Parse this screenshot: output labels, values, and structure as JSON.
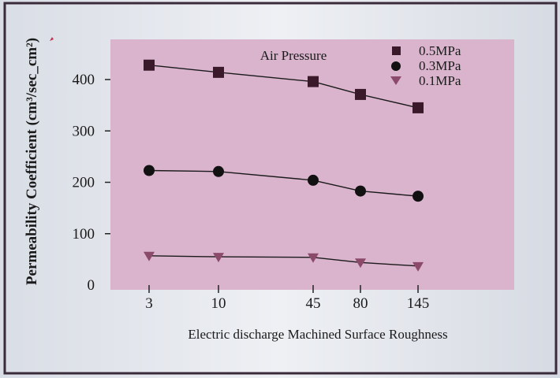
{
  "chart_data": {
    "type": "line",
    "title": "",
    "xlabel": "Electric discharge Machined Surface Roughness",
    "ylabel": "Permeability Coefficient (cm³/sec_cm²)",
    "categories": [
      "3",
      "10",
      "45",
      "80",
      "145"
    ],
    "y_ticks": [
      "0",
      "100",
      "200",
      "300",
      "400"
    ],
    "ylim": [
      0,
      460
    ],
    "grid": false,
    "legend": {
      "title": "Air Pressure",
      "placement": "top-right",
      "entries": [
        "0.5MPa",
        "0.3MPa",
        "0.1MPa"
      ]
    },
    "series": [
      {
        "name": "0.5MPa",
        "marker": "square",
        "color": "#3a1a2a",
        "values": [
          428,
          414,
          396,
          371,
          345
        ]
      },
      {
        "name": "0.3MPa",
        "marker": "circle",
        "color": "#111111",
        "values": [
          223,
          221,
          204,
          183,
          173
        ]
      },
      {
        "name": "0.1MPa",
        "marker": "triangle-down",
        "color": "#8c4a6a",
        "values": [
          57,
          55,
          54,
          44,
          37
        ]
      }
    ],
    "colors": {
      "plot_background": "#dab3cd",
      "page_background": "#e1e4ea",
      "border": "#3a2a3a"
    }
  }
}
